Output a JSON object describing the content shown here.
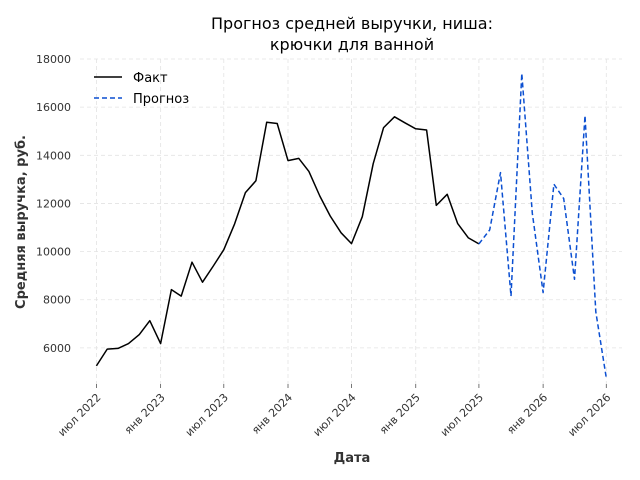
{
  "chart_data": {
    "type": "line",
    "title_line1": "Прогноз средней выручки, ниша:",
    "title_line2": "крючки для ванной",
    "xlabel": "Дата",
    "ylabel": "Средняя выручка, руб.",
    "ylim": [
      4500,
      18000
    ],
    "xlim": [
      "2022-05-15",
      "2026-08-15"
    ],
    "grid": true,
    "legend_position": "top-left",
    "y_ticks": [
      6000,
      8000,
      10000,
      12000,
      14000,
      16000,
      18000
    ],
    "x_ticks": [
      {
        "label": "июл 2022",
        "date": "2022-07-01"
      },
      {
        "label": "янв 2023",
        "date": "2023-01-01"
      },
      {
        "label": "июл 2023",
        "date": "2023-07-01"
      },
      {
        "label": "янв 2024",
        "date": "2024-01-01"
      },
      {
        "label": "июл 2024",
        "date": "2024-07-01"
      },
      {
        "label": "янв 2025",
        "date": "2025-01-01"
      },
      {
        "label": "июл 2025",
        "date": "2025-07-01"
      },
      {
        "label": "янв 2026",
        "date": "2026-01-01"
      },
      {
        "label": "июл 2026",
        "date": "2026-07-01"
      }
    ],
    "series": [
      {
        "name": "Факт",
        "color": "#000000",
        "dash": "solid",
        "points": [
          {
            "x": "2022-07-01",
            "y": 5250
          },
          {
            "x": "2022-08-01",
            "y": 5950
          },
          {
            "x": "2022-09-01",
            "y": 5980
          },
          {
            "x": "2022-10-01",
            "y": 6180
          },
          {
            "x": "2022-11-01",
            "y": 6550
          },
          {
            "x": "2022-12-01",
            "y": 7130
          },
          {
            "x": "2023-01-01",
            "y": 6180
          },
          {
            "x": "2023-02-01",
            "y": 8420
          },
          {
            "x": "2023-03-01",
            "y": 8150
          },
          {
            "x": "2023-04-01",
            "y": 9560
          },
          {
            "x": "2023-05-01",
            "y": 8730
          },
          {
            "x": "2023-06-01",
            "y": 9400
          },
          {
            "x": "2023-07-01",
            "y": 10080
          },
          {
            "x": "2023-08-01",
            "y": 11150
          },
          {
            "x": "2023-09-01",
            "y": 12450
          },
          {
            "x": "2023-10-01",
            "y": 12940
          },
          {
            "x": "2023-11-01",
            "y": 15370
          },
          {
            "x": "2023-12-01",
            "y": 15320
          },
          {
            "x": "2024-01-01",
            "y": 13780
          },
          {
            "x": "2024-02-01",
            "y": 13870
          },
          {
            "x": "2024-03-01",
            "y": 13330
          },
          {
            "x": "2024-04-01",
            "y": 12310
          },
          {
            "x": "2024-05-01",
            "y": 11480
          },
          {
            "x": "2024-06-01",
            "y": 10780
          },
          {
            "x": "2024-07-01",
            "y": 10330
          },
          {
            "x": "2024-08-01",
            "y": 11450
          },
          {
            "x": "2024-09-01",
            "y": 13650
          },
          {
            "x": "2024-10-01",
            "y": 15150
          },
          {
            "x": "2024-11-01",
            "y": 15600
          },
          {
            "x": "2024-12-01",
            "y": 15350
          },
          {
            "x": "2025-01-01",
            "y": 15100
          },
          {
            "x": "2025-02-01",
            "y": 15050
          },
          {
            "x": "2025-03-01",
            "y": 11920
          },
          {
            "x": "2025-04-01",
            "y": 12380
          },
          {
            "x": "2025-05-01",
            "y": 11170
          },
          {
            "x": "2025-06-01",
            "y": 10570
          },
          {
            "x": "2025-07-01",
            "y": 10320
          }
        ]
      },
      {
        "name": "Прогноз",
        "color": "#0b4fd1",
        "dash": "dashed",
        "points": [
          {
            "x": "2025-07-01",
            "y": 10320
          },
          {
            "x": "2025-08-01",
            "y": 10900
          },
          {
            "x": "2025-09-01",
            "y": 13280
          },
          {
            "x": "2025-10-01",
            "y": 8150
          },
          {
            "x": "2025-11-01",
            "y": 17400
          },
          {
            "x": "2025-12-01",
            "y": 11600
          },
          {
            "x": "2026-01-01",
            "y": 8300
          },
          {
            "x": "2026-02-01",
            "y": 12800
          },
          {
            "x": "2026-03-01",
            "y": 12200
          },
          {
            "x": "2026-04-01",
            "y": 8850
          },
          {
            "x": "2026-05-01",
            "y": 15650
          },
          {
            "x": "2026-06-01",
            "y": 7500
          },
          {
            "x": "2026-07-01",
            "y": 4750
          }
        ]
      }
    ]
  }
}
